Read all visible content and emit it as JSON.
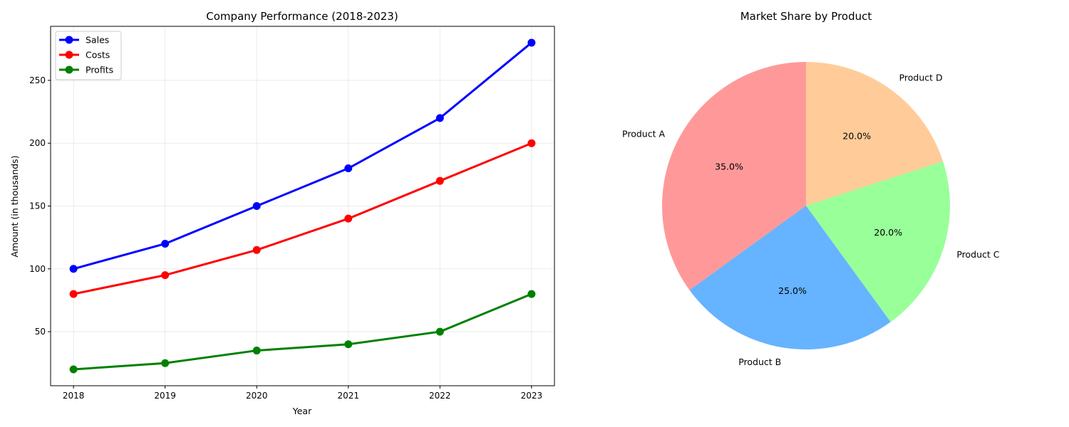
{
  "chart_data": [
    {
      "type": "line",
      "title": "Company Performance (2018-2023)",
      "xlabel": "Year",
      "ylabel": "Amount (in thousands)",
      "x": [
        2018,
        2019,
        2020,
        2021,
        2022,
        2023
      ],
      "x_tick_labels": [
        "2018",
        "2019",
        "2020",
        "2021",
        "2022",
        "2023"
      ],
      "xlim": [
        2017.75,
        2023.25
      ],
      "ylim": [
        7,
        293
      ],
      "y_ticks": [
        50,
        100,
        150,
        200,
        250
      ],
      "y_tick_labels": [
        "50",
        "100",
        "150",
        "200",
        "250"
      ],
      "grid": true,
      "legend_position": "upper-left",
      "series": [
        {
          "name": "Sales",
          "color": "#0000ff",
          "values": [
            100,
            120,
            150,
            180,
            220,
            280
          ]
        },
        {
          "name": "Costs",
          "color": "#ff0000",
          "values": [
            80,
            95,
            115,
            140,
            170,
            200
          ]
        },
        {
          "name": "Profits",
          "color": "#008000",
          "values": [
            20,
            25,
            35,
            40,
            50,
            80
          ]
        }
      ]
    },
    {
      "type": "pie",
      "title": "Market Share by Product",
      "start_angle_deg": 90,
      "direction": "counterclockwise",
      "slices": [
        {
          "label": "Product A",
          "value": 35,
          "pct_label": "35.0%",
          "color": "#ff9999"
        },
        {
          "label": "Product B",
          "value": 25,
          "pct_label": "25.0%",
          "color": "#66b3ff"
        },
        {
          "label": "Product C",
          "value": 20,
          "pct_label": "20.0%",
          "color": "#99ff99"
        },
        {
          "label": "Product D",
          "value": 20,
          "pct_label": "20.0%",
          "color": "#ffcc99"
        }
      ]
    }
  ]
}
